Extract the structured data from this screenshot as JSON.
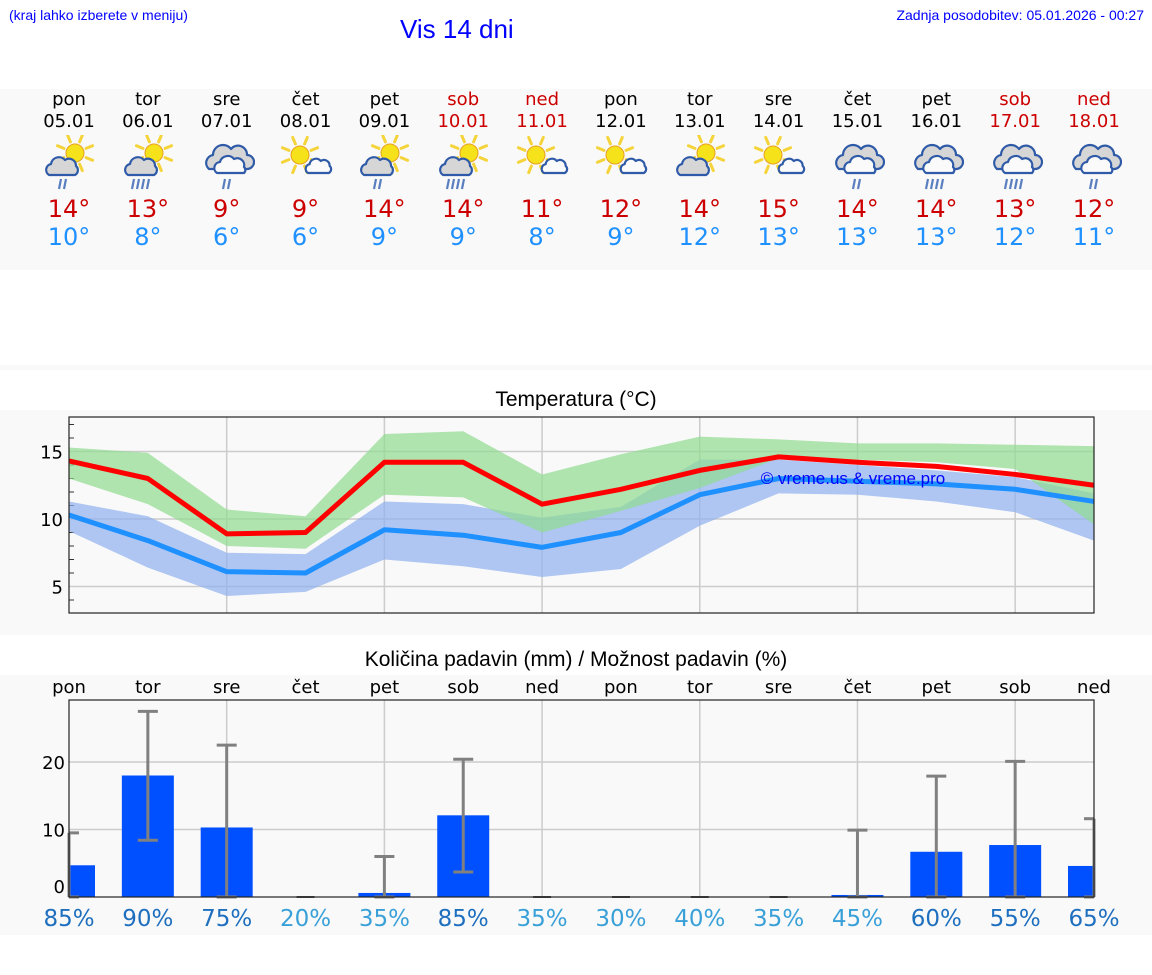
{
  "header": {
    "location_hint": "(kraj lahko izberete v meniju)",
    "title": "Vis 14 dni",
    "last_update": "Zadnja posodobitev: 05.01.2026 - 00:27"
  },
  "days": [
    {
      "name": "pon",
      "date": "05.01",
      "weekend": false,
      "icon": "partly-sunny-light-rain-icon",
      "max": "14°",
      "min": "10°"
    },
    {
      "name": "tor",
      "date": "06.01",
      "weekend": false,
      "icon": "partly-sunny-heavy-rain-icon",
      "max": "13°",
      "min": "8°"
    },
    {
      "name": "sre",
      "date": "07.01",
      "weekend": false,
      "icon": "cloudy-light-rain-icon",
      "max": "9°",
      "min": "6°"
    },
    {
      "name": "čet",
      "date": "08.01",
      "weekend": false,
      "icon": "sunny-small-cloud-icon",
      "max": "9°",
      "min": "6°"
    },
    {
      "name": "pet",
      "date": "09.01",
      "weekend": false,
      "icon": "partly-sunny-light-rain-icon",
      "max": "14°",
      "min": "9°"
    },
    {
      "name": "sob",
      "date": "10.01",
      "weekend": true,
      "icon": "partly-sunny-heavy-rain-icon",
      "max": "14°",
      "min": "9°"
    },
    {
      "name": "ned",
      "date": "11.01",
      "weekend": true,
      "icon": "sunny-small-cloud-icon",
      "max": "11°",
      "min": "8°"
    },
    {
      "name": "pon",
      "date": "12.01",
      "weekend": false,
      "icon": "sunny-small-cloud-icon",
      "max": "12°",
      "min": "9°"
    },
    {
      "name": "tor",
      "date": "13.01",
      "weekend": false,
      "icon": "partly-sunny-cloud-icon",
      "max": "14°",
      "min": "12°"
    },
    {
      "name": "sre",
      "date": "14.01",
      "weekend": false,
      "icon": "sunny-small-cloud-icon",
      "max": "15°",
      "min": "13°"
    },
    {
      "name": "čet",
      "date": "15.01",
      "weekend": false,
      "icon": "cloudy-light-rain-icon",
      "max": "14°",
      "min": "13°"
    },
    {
      "name": "pet",
      "date": "16.01",
      "weekend": false,
      "icon": "cloudy-heavy-rain-icon",
      "max": "14°",
      "min": "13°"
    },
    {
      "name": "sob",
      "date": "17.01",
      "weekend": true,
      "icon": "cloudy-heavy-rain-icon",
      "max": "13°",
      "min": "12°"
    },
    {
      "name": "ned",
      "date": "18.01",
      "weekend": true,
      "icon": "cloudy-light-rain-icon",
      "max": "12°",
      "min": "11°"
    }
  ],
  "colors": {
    "weekend": "#cc0000",
    "max_temp": "#cc0000",
    "min_temp": "#1e90ff",
    "max_line": "#ff0000",
    "min_line": "#1e90ff",
    "max_band": "#90dc90",
    "min_band": "#8fb0ee",
    "precip_bar": "#0050ff",
    "error_bar": "#808080",
    "pct_high": "#1f6fbf",
    "pct_low": "#3aa0d8",
    "link": "#0000ff"
  },
  "temp_chart": {
    "title": "Temperatura (°C)",
    "watermark": "© vreme.us & vreme.pro"
  },
  "precip_chart": {
    "title": "Količina padavin (mm) / Možnost padavin (%)",
    "day_labels": [
      "pon",
      "tor",
      "sre",
      "čet",
      "pet",
      "sob",
      "ned",
      "pon",
      "tor",
      "sre",
      "čet",
      "pet",
      "sob",
      "ned"
    ],
    "chances": [
      "85%",
      "90%",
      "75%",
      "20%",
      "35%",
      "85%",
      "35%",
      "30%",
      "40%",
      "35%",
      "45%",
      "60%",
      "55%",
      "65%"
    ],
    "chance_levels": [
      "high",
      "high",
      "high",
      "low",
      "low",
      "high",
      "low",
      "low",
      "low",
      "low",
      "low",
      "high",
      "high",
      "high"
    ]
  },
  "chart_data": [
    {
      "type": "line",
      "title": "Temperatura (°C)",
      "xlabel": "",
      "ylabel": "°C",
      "categories": [
        "05.01",
        "06.01",
        "07.01",
        "08.01",
        "09.01",
        "10.01",
        "11.01",
        "12.01",
        "13.01",
        "14.01",
        "15.01",
        "16.01",
        "17.01",
        "18.01"
      ],
      "series": [
        {
          "name": "Max temperature",
          "color": "#ff0000",
          "values": [
            14.3,
            13.0,
            8.9,
            9.0,
            14.2,
            14.2,
            11.1,
            12.2,
            13.6,
            14.6,
            14.2,
            13.9,
            13.3,
            12.5
          ]
        },
        {
          "name": "Max range upper",
          "values": [
            15.3,
            14.9,
            10.7,
            10.2,
            16.3,
            16.5,
            13.3,
            14.8,
            16.1,
            15.9,
            15.6,
            15.6,
            15.5,
            15.4
          ]
        },
        {
          "name": "Max range lower",
          "values": [
            13.0,
            11.1,
            8.0,
            7.8,
            11.8,
            11.6,
            9.0,
            10.6,
            12.3,
            14.5,
            14.4,
            14.2,
            13.7,
            9.6
          ]
        },
        {
          "name": "Min temperature",
          "color": "#1e90ff",
          "values": [
            10.3,
            8.4,
            6.1,
            6.0,
            9.2,
            8.8,
            7.9,
            9.0,
            11.8,
            13.0,
            12.8,
            12.6,
            12.2,
            11.3
          ]
        },
        {
          "name": "Min range upper",
          "values": [
            11.3,
            10.2,
            7.5,
            7.4,
            11.3,
            11.1,
            10.1,
            10.9,
            14.4,
            14.4,
            14.0,
            13.6,
            13.1,
            11.9
          ]
        },
        {
          "name": "Min range lower",
          "values": [
            9.1,
            6.4,
            4.3,
            4.6,
            7.0,
            6.5,
            5.7,
            6.3,
            9.5,
            11.9,
            11.8,
            11.3,
            10.5,
            8.4
          ]
        }
      ],
      "yticks": [
        5,
        10,
        15
      ],
      "ylim": [
        3,
        17.5
      ],
      "grid": true,
      "annotations": [
        "© vreme.us & vreme.pro"
      ]
    },
    {
      "type": "bar",
      "title": "Količina padavin (mm) / Možnost padavin (%)",
      "xlabel": "",
      "ylabel": "mm",
      "categories": [
        "pon",
        "tor",
        "sre",
        "čet",
        "pet",
        "sob",
        "ned",
        "pon",
        "tor",
        "sre",
        "čet",
        "pet",
        "sob",
        "ned"
      ],
      "series": [
        {
          "name": "Precipitation (mm)",
          "color": "#0050ff",
          "values": [
            4.7,
            18.0,
            10.3,
            0,
            0.6,
            12.1,
            0,
            0,
            0,
            0,
            0.3,
            6.7,
            7.7,
            4.6
          ]
        },
        {
          "name": "Error bar upper (mm)",
          "values": [
            9.5,
            27.5,
            22.5,
            0,
            6.0,
            20.4,
            0,
            0,
            0,
            0,
            9.9,
            17.9,
            20.1,
            11.6
          ]
        },
        {
          "name": "Error bar lower (mm)",
          "values": [
            0,
            8.4,
            0,
            0,
            0,
            3.7,
            0,
            0,
            0,
            0,
            0,
            0,
            0,
            0
          ]
        },
        {
          "name": "Precipitation chance (%)",
          "values": [
            85,
            90,
            75,
            20,
            35,
            85,
            35,
            30,
            40,
            35,
            45,
            60,
            55,
            65
          ]
        }
      ],
      "yticks": [
        0,
        10,
        20
      ],
      "ylim": [
        0,
        29
      ],
      "grid": true
    }
  ]
}
